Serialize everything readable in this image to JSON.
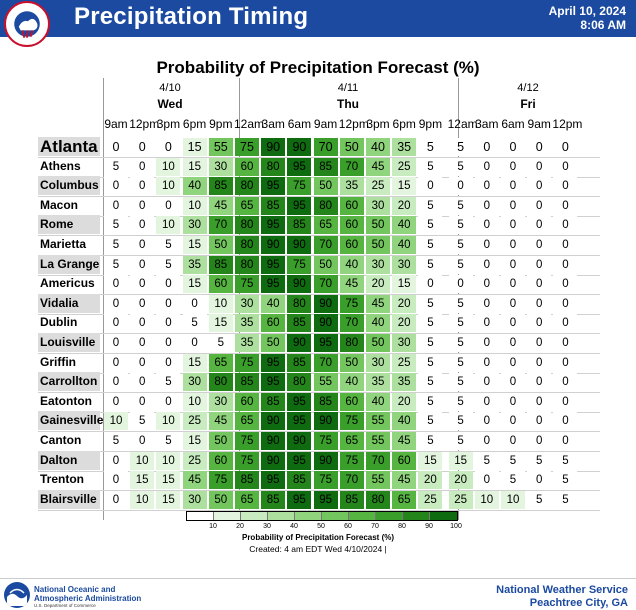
{
  "header": {
    "title": "Precipitation Timing",
    "date": "April 10, 2024",
    "time": "8:06 AM",
    "logo_text": "NATIONAL WEATHER SERVICE"
  },
  "chart": {
    "title": "Probability of Precipitation Forecast (%)",
    "days": [
      {
        "date": "4/10",
        "name": "Wed"
      },
      {
        "date": "4/11",
        "name": "Thu"
      },
      {
        "date": "4/12",
        "name": "Fri"
      }
    ],
    "hours": [
      "9am",
      "12pm",
      "3pm",
      "6pm",
      "9pm",
      "12am",
      "3am",
      "6am",
      "9am",
      "12pm",
      "3pm",
      "6pm",
      "9pm",
      "12am",
      "3am",
      "6am",
      "9am",
      "12pm"
    ],
    "cities": [
      {
        "name": "Atlanta",
        "values": [
          0,
          0,
          0,
          15,
          55,
          75,
          90,
          90,
          70,
          50,
          40,
          35,
          5,
          5,
          0,
          0,
          0,
          0
        ]
      },
      {
        "name": "Athens",
        "values": [
          5,
          0,
          10,
          15,
          30,
          60,
          80,
          95,
          85,
          70,
          45,
          25,
          5,
          5,
          0,
          0,
          0,
          0
        ]
      },
      {
        "name": "Columbus",
        "values": [
          0,
          0,
          10,
          40,
          85,
          80,
          95,
          75,
          50,
          35,
          25,
          15,
          0,
          0,
          0,
          0,
          0,
          0
        ]
      },
      {
        "name": "Macon",
        "values": [
          0,
          0,
          0,
          10,
          45,
          65,
          85,
          95,
          80,
          60,
          30,
          20,
          5,
          5,
          0,
          0,
          0,
          0
        ]
      },
      {
        "name": "Rome",
        "values": [
          5,
          0,
          10,
          30,
          70,
          80,
          95,
          85,
          65,
          60,
          50,
          40,
          5,
          5,
          0,
          0,
          0,
          0
        ]
      },
      {
        "name": "Marietta",
        "values": [
          5,
          0,
          5,
          15,
          50,
          80,
          90,
          90,
          70,
          60,
          50,
          40,
          5,
          5,
          0,
          0,
          0,
          0
        ]
      },
      {
        "name": "La Grange",
        "values": [
          5,
          0,
          5,
          35,
          85,
          80,
          95,
          75,
          50,
          40,
          30,
          30,
          5,
          5,
          0,
          0,
          0,
          0
        ]
      },
      {
        "name": "Americus",
        "values": [
          0,
          0,
          0,
          15,
          60,
          75,
          95,
          90,
          70,
          45,
          20,
          15,
          0,
          0,
          0,
          0,
          0,
          0
        ]
      },
      {
        "name": "Vidalia",
        "values": [
          0,
          0,
          0,
          0,
          10,
          30,
          40,
          80,
          90,
          75,
          45,
          20,
          5,
          5,
          0,
          0,
          0,
          0
        ]
      },
      {
        "name": "Dublin",
        "values": [
          0,
          0,
          0,
          5,
          15,
          35,
          60,
          85,
          90,
          70,
          40,
          20,
          5,
          5,
          0,
          0,
          0,
          0
        ]
      },
      {
        "name": "Louisville",
        "values": [
          0,
          0,
          0,
          0,
          5,
          35,
          50,
          90,
          95,
          80,
          50,
          30,
          5,
          5,
          0,
          0,
          0,
          0
        ]
      },
      {
        "name": "Griffin",
        "values": [
          0,
          0,
          0,
          15,
          65,
          75,
          95,
          85,
          70,
          50,
          30,
          25,
          5,
          5,
          0,
          0,
          0,
          0
        ]
      },
      {
        "name": "Carrollton",
        "values": [
          0,
          0,
          5,
          30,
          80,
          85,
          95,
          80,
          55,
          40,
          35,
          35,
          5,
          5,
          0,
          0,
          0,
          0
        ]
      },
      {
        "name": "Eatonton",
        "values": [
          0,
          0,
          0,
          10,
          30,
          60,
          85,
          95,
          85,
          60,
          40,
          20,
          5,
          5,
          0,
          0,
          0,
          0
        ]
      },
      {
        "name": "Gainesville",
        "values": [
          10,
          5,
          10,
          25,
          45,
          65,
          90,
          95,
          90,
          75,
          55,
          40,
          5,
          5,
          0,
          0,
          0,
          0
        ]
      },
      {
        "name": "Canton",
        "values": [
          5,
          0,
          5,
          15,
          50,
          75,
          90,
          90,
          75,
          65,
          55,
          45,
          5,
          5,
          0,
          0,
          0,
          0
        ]
      },
      {
        "name": "Dalton",
        "values": [
          0,
          10,
          10,
          25,
          60,
          75,
          90,
          95,
          90,
          75,
          70,
          60,
          15,
          15,
          5,
          5,
          5,
          5
        ]
      },
      {
        "name": "Trenton",
        "values": [
          0,
          15,
          15,
          45,
          75,
          85,
          95,
          85,
          75,
          70,
          55,
          45,
          20,
          20,
          0,
          5,
          0,
          5
        ]
      },
      {
        "name": "Blairsville",
        "values": [
          0,
          10,
          15,
          30,
          50,
          65,
          85,
          95,
          95,
          85,
          80,
          65,
          25,
          25,
          10,
          10,
          5,
          5
        ]
      }
    ]
  },
  "colorbar": {
    "ticks": [
      "10",
      "20",
      "30",
      "40",
      "50",
      "60",
      "70",
      "80",
      "90",
      "100"
    ],
    "label": "Probability of Precipitation Forecast (%)",
    "created": "Created: 4 am EDT Wed 4/10/2024  |"
  },
  "footer": {
    "noaa_line1": "National Oceanic and",
    "noaa_line2": "Atmospheric Administration",
    "noaa_sub": "U.S. Department of Commerce",
    "nws_line1": "National Weather Service",
    "nws_line2": "Peachtree City, GA"
  },
  "colors": {
    "header_bg": "#1b4aa0",
    "scale": [
      "#ffffff",
      "#e4f5df",
      "#c9ebc0",
      "#ade09f",
      "#90d47e",
      "#72c65d",
      "#55b540",
      "#3a9f2a",
      "#24861a",
      "#0f6b0f"
    ]
  }
}
